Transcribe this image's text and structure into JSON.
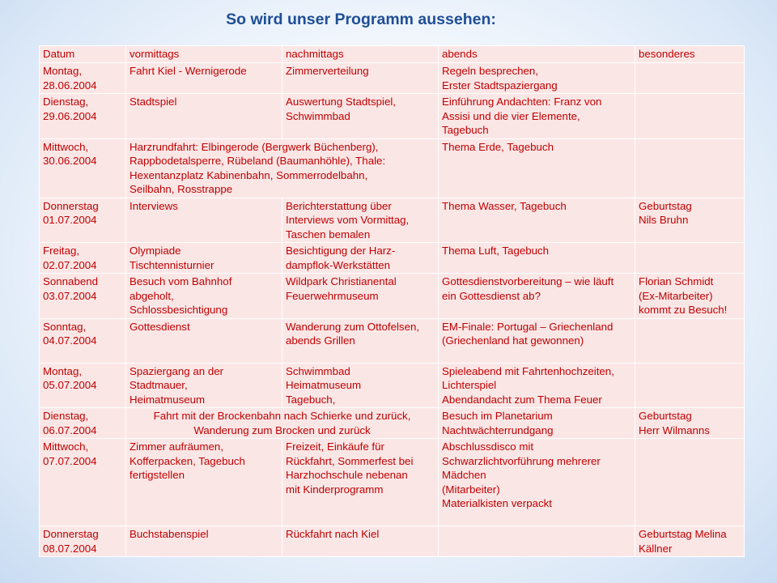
{
  "title": "So wird  unser Programm aussehen:",
  "table": {
    "headers": [
      "Datum",
      "vormittags",
      "nachmittags",
      "abends",
      "besonderes"
    ],
    "rows": [
      {
        "datum": "Montag,\n28.06.2004",
        "vormittags": "Fahrt Kiel - Wernigerode",
        "nachmittags": "Zimmerverteilung",
        "abends": "Regeln besprechen,\nErster Stadtspaziergang",
        "besonderes": ""
      },
      {
        "datum": "Dienstag,\n29.06.2004",
        "vormittags": "Stadtspiel",
        "nachmittags": "Auswertung Stadtspiel,\nSchwimmbad",
        "abends": "Einführung Andachten: Franz von\nAssisi und die vier Elemente,\nTagebuch",
        "besonderes": ""
      },
      {
        "datum": "Mittwoch,\n30.06.2004",
        "vormittags_nachmittags": "Harzrundfahrt: Elbingerode (Bergwerk Büchenberg),\nRappbodetalsperre, Rübeland (Baumanhöhle), Thale:\nHexentanzplatz Kabinenbahn, Sommerrodelbahn,\nSeilbahn, Rosstrappe",
        "abends": "Thema Erde, Tagebuch",
        "besonderes": ""
      },
      {
        "datum": "Donnerstag\n01.07.2004",
        "vormittags": "Interviews",
        "nachmittags": "Berichterstattung über\nInterviews vom Vormittag,\nTaschen bemalen",
        "abends": "Thema Wasser, Tagebuch",
        "besonderes": "Geburtstag\nNils Bruhn"
      },
      {
        "datum": "Freitag,\n02.07.2004",
        "vormittags": "Olympiade\nTischtennisturnier",
        "nachmittags": "Besichtigung der Harz-\ndampflok-Werkstätten",
        "abends": "Thema Luft, Tagebuch",
        "besonderes": ""
      },
      {
        "datum": "Sonnabend\n03.07.2004",
        "vormittags": "Besuch vom Bahnhof\nabgeholt,\nSchlossbesichtigung",
        "nachmittags": "Wildpark Christianental\nFeuerwehrmuseum",
        "abends": "Gottesdienstvorbereitung  – wie läuft\nein Gottesdienst ab?",
        "besonderes": "Florian Schmidt\n(Ex-Mitarbeiter)\nkommt zu Besuch!"
      },
      {
        "datum": "Sonntag,\n04.07.2004",
        "vormittags": "Gottesdienst",
        "nachmittags": "Wanderung zum Ottofelsen,\nabends Grillen",
        "abends": "EM-Finale:  Portugal – Griechenland\n(Griechenland hat gewonnen)",
        "besonderes": ""
      },
      {
        "datum": "Montag,\n05.07.2004",
        "vormittags": "Spaziergang an der\nStadtmauer,\nHeimatmuseum",
        "nachmittags": "Schwimmbad\nHeimatmuseum\nTagebuch,",
        "abends": "Spieleabend mit Fahrtenhochzeiten,\nLichterspiel\nAbendandacht  zum Thema Feuer",
        "besonderes": ""
      },
      {
        "datum": "Dienstag,\n06.07.2004",
        "vormittags_nachmittags": "Fahrt mit der Brockenbahn nach Schierke und zurück,\nWanderung zum Brocken und zurück",
        "abends": "Besuch im Planetarium\nNachtwächterrundgang",
        "besonderes": "Geburtstag\nHerr Wilmanns"
      },
      {
        "datum": "Mittwoch,\n07.07.2004",
        "vormittags": "Zimmer aufräumen,\nKofferpacken, Tagebuch\nfertigstellen",
        "nachmittags": "Freizeit, Einkäufe für\nRückfahrt, Sommerfest bei\nHarzhochschule nebenan\nmit Kinderprogramm",
        "abends": "Abschlussdisco mit\nSchwarzlichtvorführung mehrerer\nMädchen\n(Mitarbeiter)\nMaterialkisten  verpackt",
        "besonderes": ""
      },
      {
        "datum": "Donnerstag\n08.07.2004",
        "vormittags": "Buchstabenspiel",
        "nachmittags": "Rückfahrt nach Kiel",
        "abends": "",
        "besonderes": "Geburtstag Melina\nKällner"
      }
    ]
  }
}
